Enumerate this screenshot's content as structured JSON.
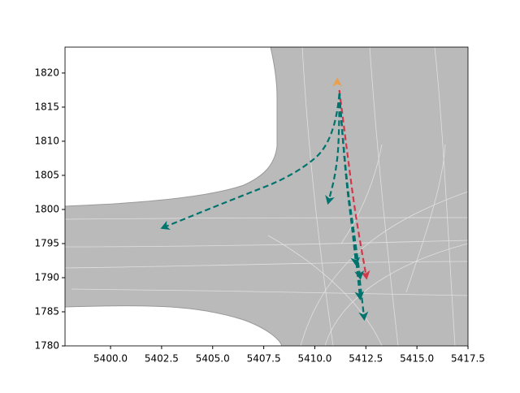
{
  "chart_data": {
    "type": "line",
    "xlim": [
      5397.77,
      5417.5
    ],
    "ylim": [
      1780,
      1823.8
    ],
    "xticks": [
      {
        "value": 5400,
        "label": "5400.0"
      },
      {
        "value": 5402.5,
        "label": "5402.5"
      },
      {
        "value": 5405,
        "label": "5405.0"
      },
      {
        "value": 5407.5,
        "label": "5407.5"
      },
      {
        "value": 5410,
        "label": "5410.0"
      },
      {
        "value": 5412.5,
        "label": "5412.5"
      },
      {
        "value": 5415,
        "label": "5415.0"
      },
      {
        "value": 5417.5,
        "label": "5417.5"
      }
    ],
    "yticks": [
      1780,
      1785,
      1790,
      1795,
      1800,
      1805,
      1810,
      1815,
      1820
    ],
    "series": [
      {
        "color": "#d1384a",
        "x": [
          5411.2,
          5411.6,
          5412.0,
          5412.5
        ],
        "y": [
          1817.5,
          1808,
          1799,
          1790.5
        ]
      },
      {
        "color": "#00736e",
        "x": [
          5411.2,
          5411.0,
          5409.0,
          5406.0,
          5402.7
        ],
        "y": [
          1817,
          1810,
          1805,
          1801.5,
          1797.5
        ]
      },
      {
        "color": "#00736e",
        "x": [
          5411.2,
          5411.2,
          5411.0,
          5410.7
        ],
        "y": [
          1817,
          1810,
          1805,
          1801.5
        ]
      },
      {
        "color": "#00736e",
        "x": [
          5411.2,
          5411.5,
          5411.8,
          5412.0
        ],
        "y": [
          1817,
          1805,
          1798,
          1792.5
        ]
      },
      {
        "color": "#00736e",
        "x": [
          5411.2,
          5411.5,
          5411.9,
          5412.2
        ],
        "y": [
          1817,
          1805,
          1797,
          1790.5
        ]
      },
      {
        "color": "#00736e",
        "x": [
          5411.2,
          5411.5,
          5411.9,
          5412.2
        ],
        "y": [
          1817,
          1805,
          1796,
          1787.5
        ]
      },
      {
        "color": "#00736e",
        "x": [
          5411.2,
          5411.5,
          5412.0,
          5412.4
        ],
        "y": [
          1817,
          1805,
          1795,
          1784.5
        ]
      },
      {
        "color": "#e8a04c",
        "x": [
          5411.1
        ],
        "y": [
          1818.5
        ]
      }
    ]
  }
}
